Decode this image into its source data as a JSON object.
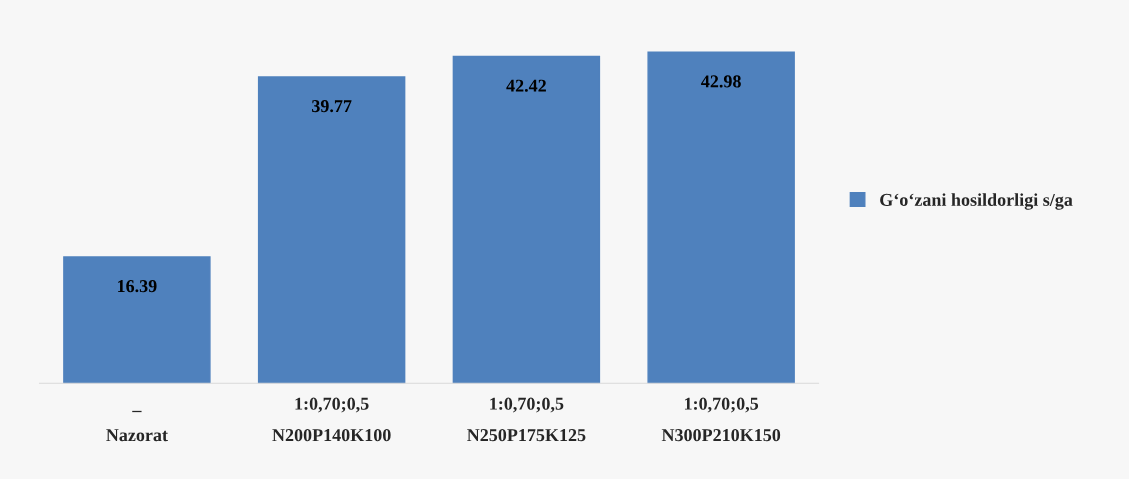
{
  "chart_data": {
    "type": "bar",
    "categories": [
      "_\nNazorat",
      "1:0,70;0,5\nN200P140K100",
      "1:0,70;0,5\nN250P175K125",
      "1:0,70;0,5\nN300P210K150"
    ],
    "series": [
      {
        "name": "G‘o‘zani hosildorligi s/ga",
        "color": "#4f81bd",
        "values": [
          16.39,
          39.77,
          42.42,
          42.98
        ]
      }
    ],
    "data_labels": true,
    "legend": "right",
    "grid": false
  }
}
